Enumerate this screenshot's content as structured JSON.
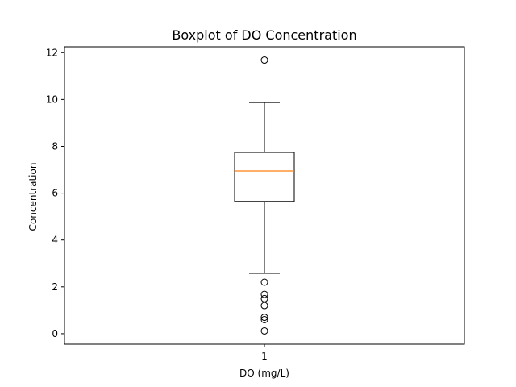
{
  "chart_data": {
    "type": "boxplot",
    "title": "Boxplot of DO Concentration",
    "xlabel": "DO (mg/L)",
    "ylabel": "Concentration",
    "categories": [
      "1"
    ],
    "ylim": [
      -0.45,
      12.25
    ],
    "yticks": [
      0,
      2,
      4,
      6,
      8,
      10,
      12
    ],
    "grid": false,
    "boxes": [
      {
        "category": "1",
        "whisker_low": 2.58,
        "q1": 5.65,
        "median": 6.95,
        "q3": 7.74,
        "whisker_high": 9.87,
        "outliers": [
          11.68,
          2.2,
          1.68,
          1.5,
          1.2,
          0.7,
          0.6,
          0.12
        ]
      }
    ],
    "colors": {
      "box": "#000000",
      "median": "#ff7f0e",
      "outlier": "#000000"
    }
  }
}
